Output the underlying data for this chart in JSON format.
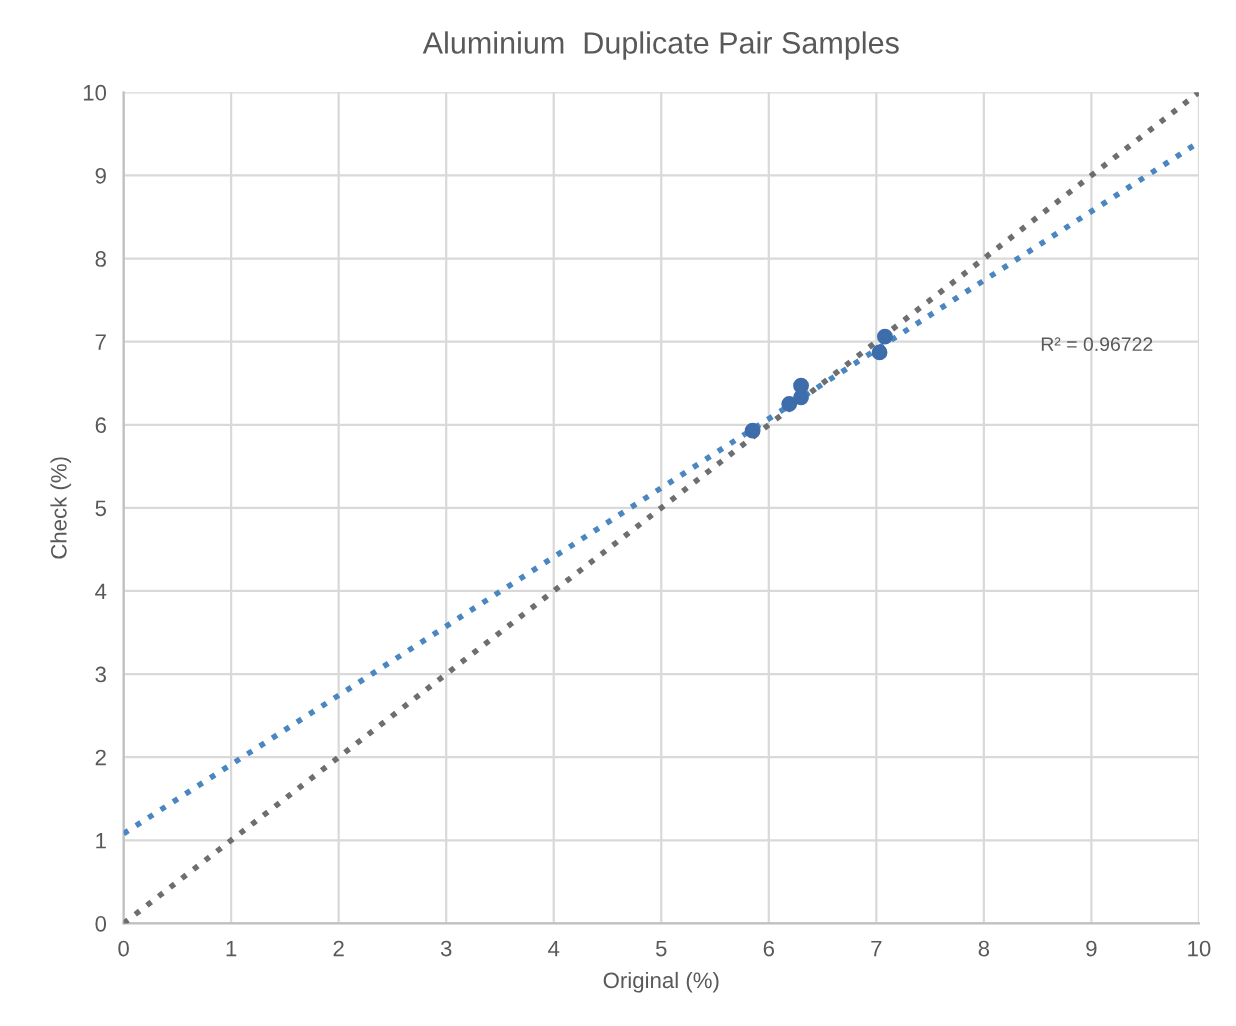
{
  "chart_data": {
    "type": "scatter",
    "title": "Aluminium  Duplicate Pair Samples",
    "xlabel": "Original (%)",
    "ylabel": "Check (%)",
    "series": [
      {
        "color": "#3d6dab",
        "marker": "circle",
        "x": [
          5.85,
          6.19,
          6.3,
          6.3,
          7.03,
          7.08
        ],
        "values": [
          5.93,
          6.25,
          6.47,
          6.33,
          6.87,
          7.06
        ]
      },
      {
        "type": "line",
        "color": "#4a86c0",
        "line_style": "dotted",
        "marker": "none",
        "x": [
          0,
          10
        ],
        "values": [
          1.08,
          9.4
        ]
      },
      {
        "type": "line",
        "color": "#6e6e6e",
        "line_style": "dotted",
        "marker": "none",
        "x": [
          0,
          10
        ],
        "values": [
          0,
          10
        ]
      }
    ],
    "annotations": [
      "R² = 0.96722"
    ],
    "xlim": [
      0,
      10
    ],
    "ylim": [
      0,
      10
    ],
    "xticks": [
      0,
      1,
      2,
      3,
      4,
      5,
      6,
      7,
      8,
      9,
      10
    ],
    "yticks": [
      0,
      1,
      2,
      3,
      4,
      5,
      6,
      7,
      8,
      9,
      10
    ],
    "grid": true,
    "legend": false
  }
}
